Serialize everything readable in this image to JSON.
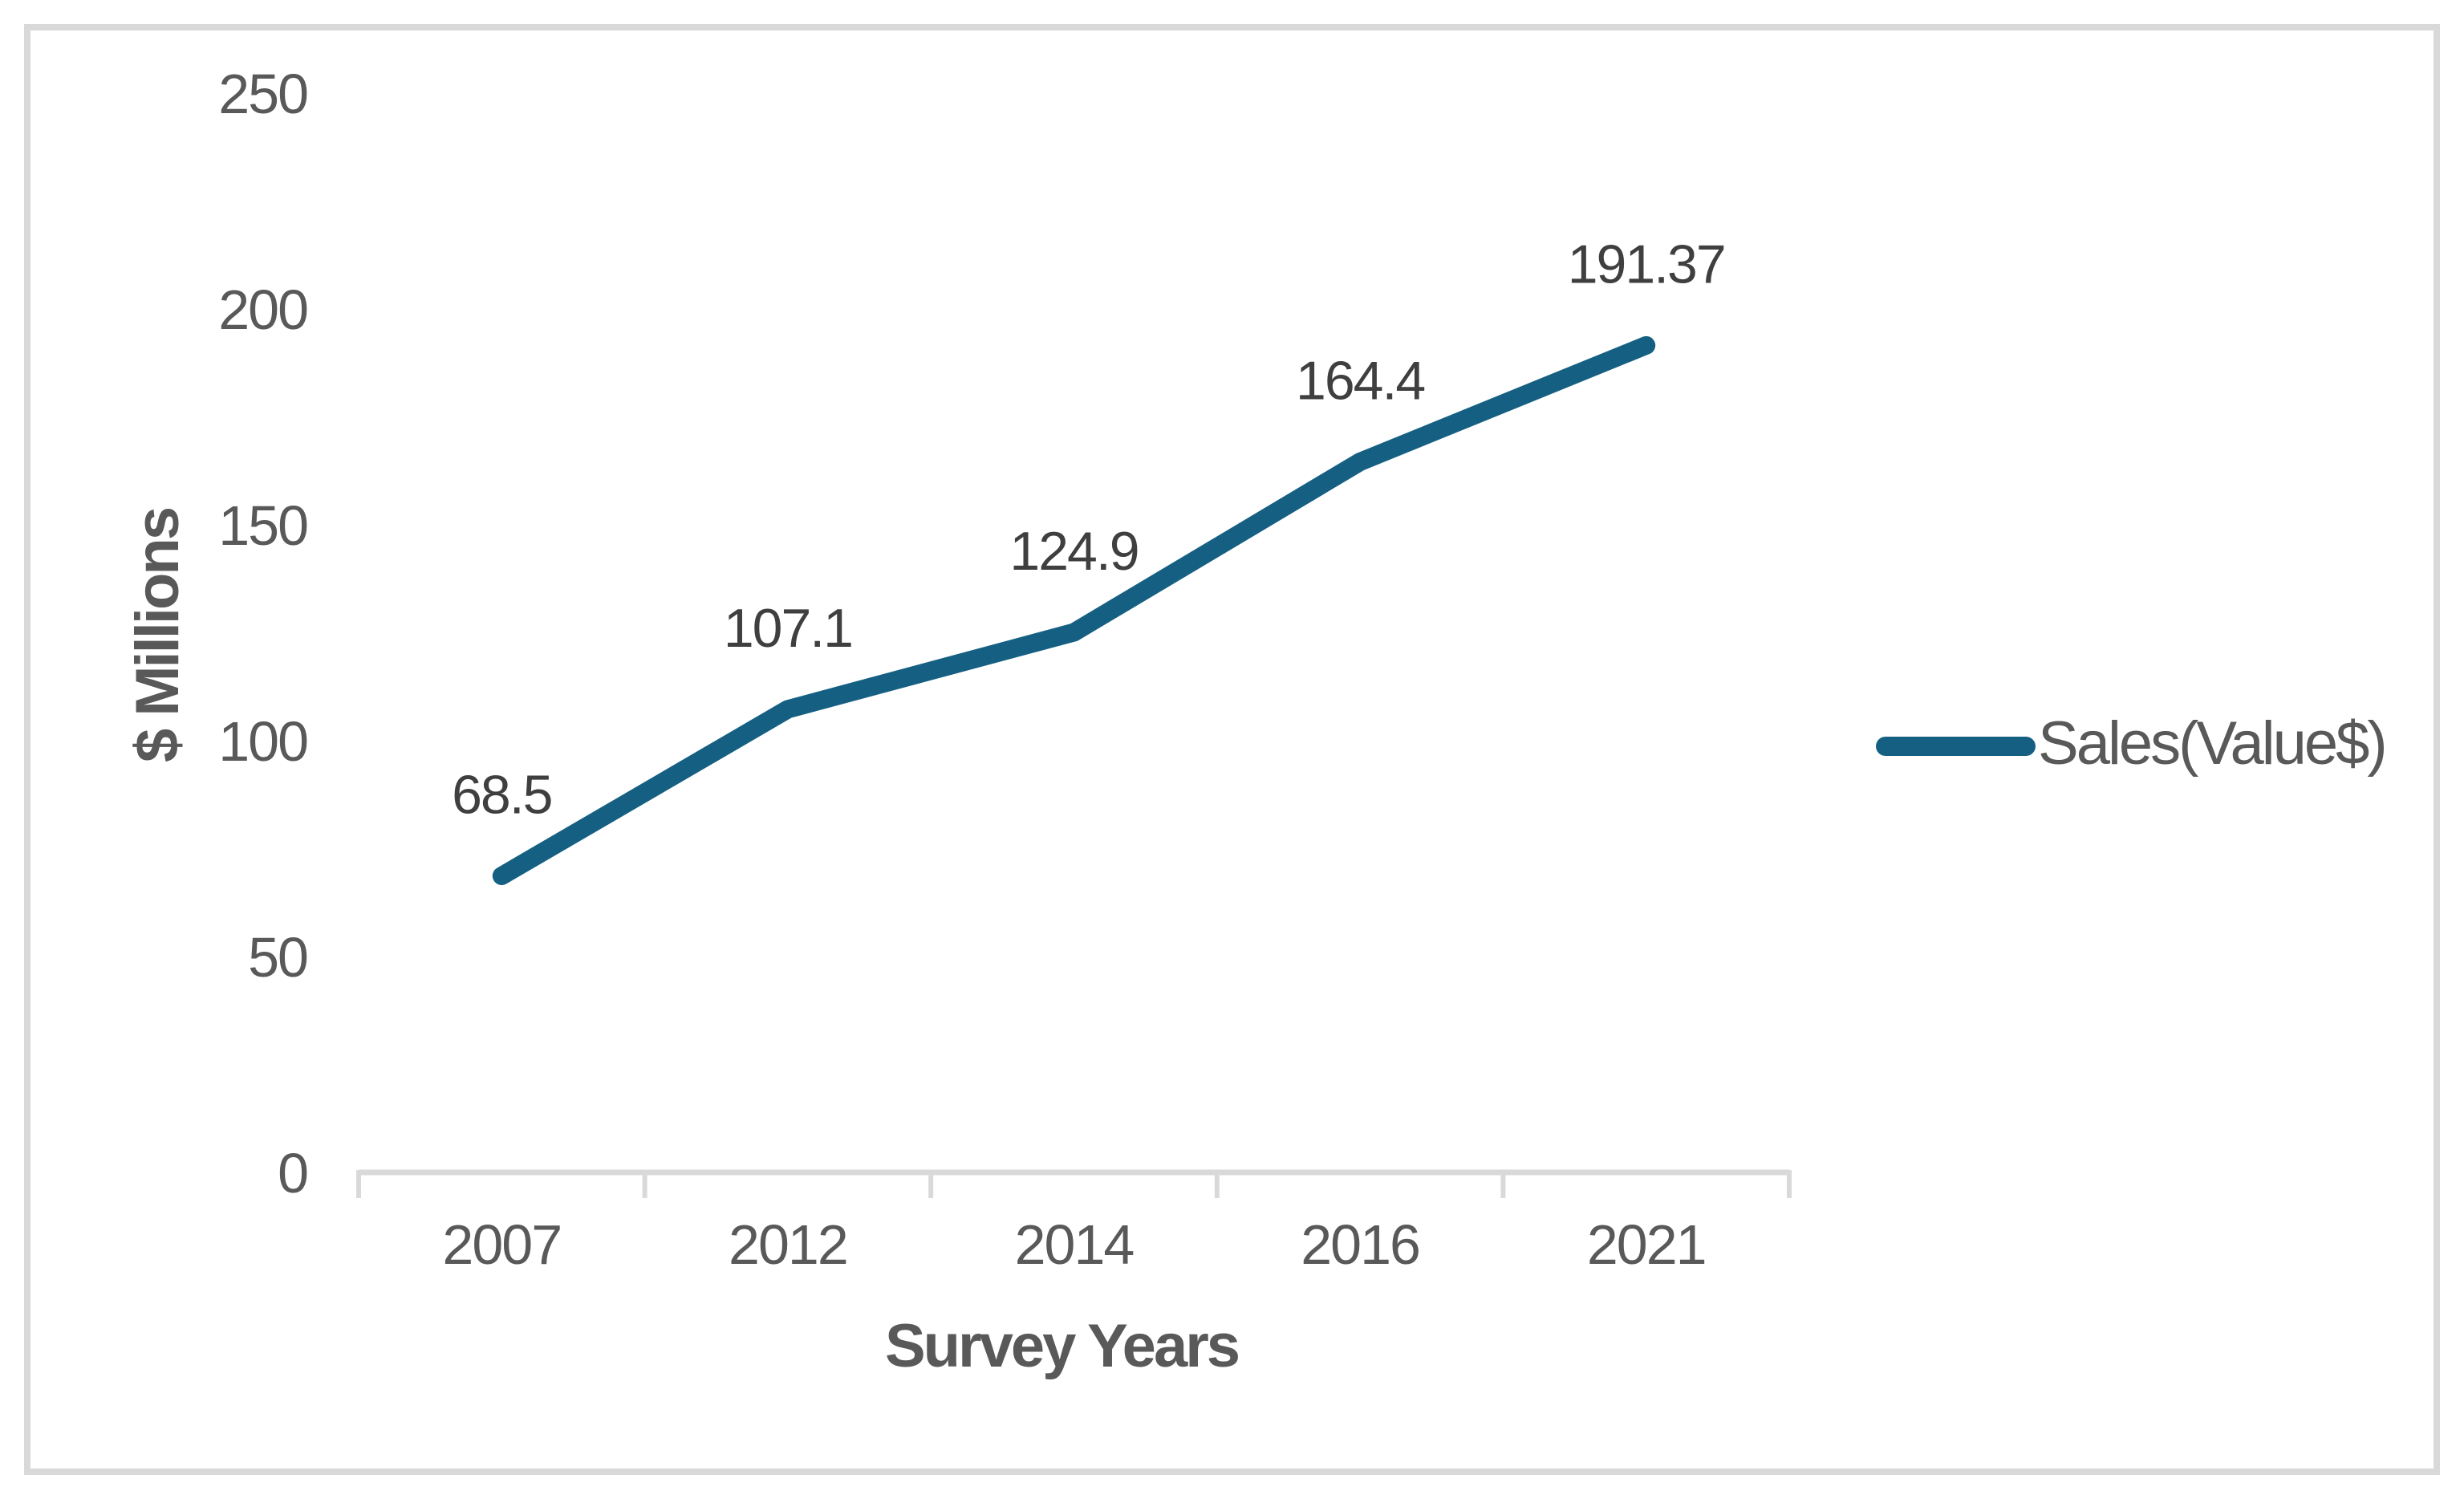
{
  "chart_data": {
    "type": "line",
    "title": "",
    "categories": [
      "2007",
      "2012",
      "2014",
      "2016",
      "2021"
    ],
    "series": [
      {
        "name": "Sales(Value$)",
        "values": [
          68.5,
          107.1,
          124.9,
          164.4,
          191.37
        ],
        "data_labels": [
          "68.5",
          "107.1",
          "124.9",
          "164.4",
          "191.37"
        ],
        "color": "#156082"
      }
    ],
    "xlabel": "Survey Years",
    "ylabel": "$ Millions",
    "ylim": [
      0,
      250
    ],
    "yticks": [
      0,
      50,
      100,
      150,
      200,
      250
    ],
    "ytick_labels": [
      "0",
      "50",
      "100",
      "150",
      "200",
      "250"
    ],
    "grid": false,
    "data_label_position": "above",
    "legend": {
      "position": "right",
      "entries": [
        "Sales(Value$)"
      ]
    },
    "colors": {
      "line": "#156082",
      "axis_text": "#595959",
      "axis_title_text": "#595959",
      "data_label_text": "#3F3F3F",
      "axis_line": "#D9D9D9",
      "chart_border": "#D9D9D9",
      "background": "#FFFFFF"
    }
  }
}
